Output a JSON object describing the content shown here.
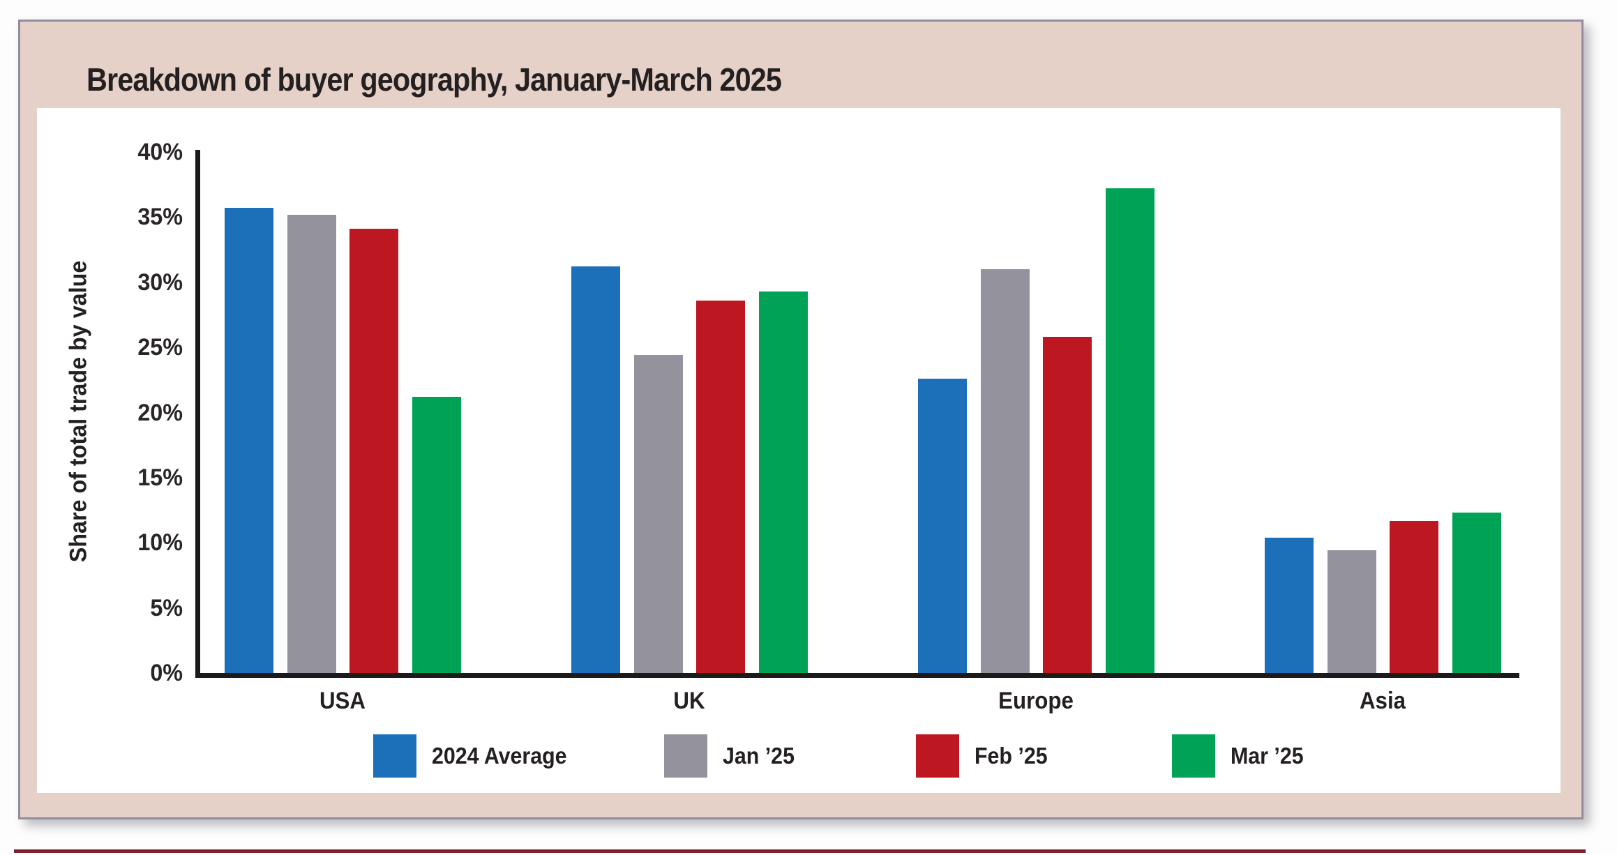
{
  "title": "Breakdown of buyer geography, January-March 2025",
  "chart_data": {
    "type": "bar",
    "title": "Breakdown of buyer geography, January-March 2025",
    "xlabel": "",
    "ylabel": "Share of total trade by value",
    "categories": [
      "USA",
      "UK",
      "Europe",
      "Asia"
    ],
    "series": [
      {
        "name": "2024 Average",
        "color": "#1b70b9",
        "values": [
          35.7,
          31.2,
          22.6,
          10.4
        ]
      },
      {
        "name": "Jan ’25",
        "color": "#94939d",
        "values": [
          35.2,
          24.4,
          31.0,
          9.4
        ]
      },
      {
        "name": "Feb ’25",
        "color": "#bd1822",
        "values": [
          34.1,
          28.6,
          25.8,
          11.7
        ]
      },
      {
        "name": "Mar ’25",
        "color": "#00a356",
        "values": [
          21.2,
          29.3,
          37.2,
          12.3
        ]
      }
    ],
    "ylim": [
      0,
      40
    ],
    "ytick_step": 5,
    "ytick_labels": [
      "0%",
      "5%",
      "10%",
      "15%",
      "20%",
      "25%",
      "30%",
      "35%",
      "40%"
    ],
    "grid": false,
    "legend_position": "bottom"
  },
  "colors": {
    "frame_background": "#e5d1c7",
    "frame_border": "#918d9e",
    "panel_background": "#ffffff",
    "axis": "#1c1a1b",
    "text": "#241f20",
    "bottom_rule": "#7d2029"
  }
}
